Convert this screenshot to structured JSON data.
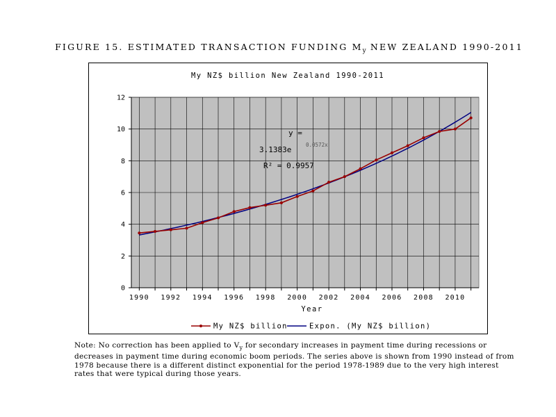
{
  "figure_title": "FIGURE 15. ESTIMATED TRANSACTION FUNDING M",
  "figure_title_sub": "y",
  "figure_title_rest": " NEW ZEALAND 1990-2011",
  "note_prefix": "Note:  No correction has been applied to V",
  "note_sub": "y",
  "note_rest": " for secondary increases in payment time during recessions or decreases in payment time during economic boom periods. The series above is shown from 1990 instead of from 1978 because there is a different distinct exponential for the period 1978-1989 due to the very high interest rates that were typical during those years.",
  "colors": {
    "plot_bg": "#c0c0c0",
    "series": "#990000",
    "trend": "#000080",
    "grid": "#000000"
  },
  "chart_data": {
    "type": "line",
    "title": "My NZ$ billion  New Zealand 1990-2011",
    "xlabel": "Year",
    "ylabel": "",
    "xlim": [
      1989.5,
      2011.5
    ],
    "ylim": [
      0,
      12
    ],
    "yticks": [
      0,
      2,
      4,
      6,
      8,
      10,
      12
    ],
    "xticks": [
      1990,
      1992,
      1994,
      1996,
      1998,
      2000,
      2002,
      2004,
      2006,
      2008,
      2010
    ],
    "grid": "on",
    "legend_position": "bottom",
    "series": [
      {
        "name": "My NZ$ billion",
        "x": [
          1990,
          1991,
          1992,
          1993,
          1994,
          1995,
          1996,
          1997,
          1998,
          1999,
          2000,
          2001,
          2002,
          2003,
          2004,
          2005,
          2006,
          2007,
          2008,
          2009,
          2010,
          2011
        ],
        "values": [
          3.45,
          3.55,
          3.65,
          3.75,
          4.1,
          4.4,
          4.8,
          5.05,
          5.2,
          5.35,
          5.75,
          6.1,
          6.65,
          7.0,
          7.5,
          8.05,
          8.5,
          8.95,
          9.45,
          9.85,
          10.0,
          10.7
        ]
      },
      {
        "name": "Expon. (My NZ$ billion)",
        "trend": "exponential",
        "a": 3.1383,
        "b": 0.0572,
        "x_index_start": 1990
      }
    ],
    "annotations": [
      {
        "text": "y =",
        "kind": "equation-line1"
      },
      {
        "text": "3.1383e",
        "kind": "equation-base"
      },
      {
        "text": "0.0572x",
        "kind": "equation-exponent"
      },
      {
        "text": "R² = 0.9957",
        "kind": "r-squared"
      }
    ]
  }
}
